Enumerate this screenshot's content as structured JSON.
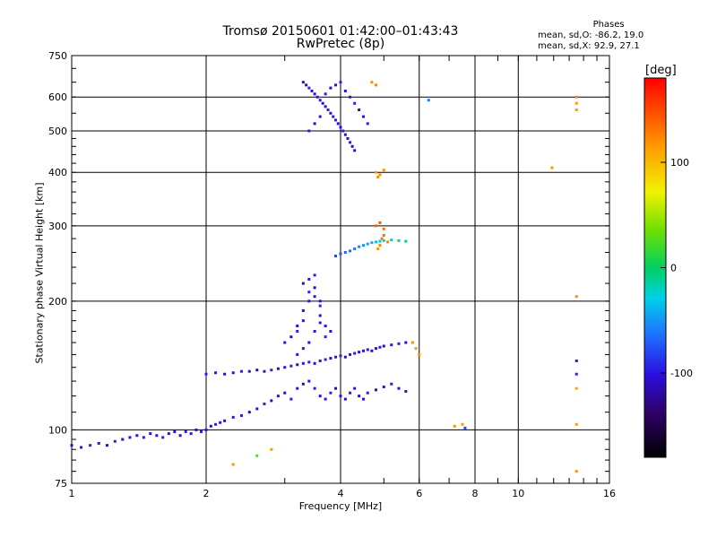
{
  "title": "Tromsø 20150601 01:42:00–01:43:43",
  "subtitle": "RwPretec (8p)",
  "phases": {
    "heading": "Phases",
    "line_o": "mean, sd,O: -86.2, 19.0",
    "line_x": "mean, sd,X:  92.9, 27.1"
  },
  "chart_data": {
    "type": "scatter",
    "title": "Tromsø 20150601 01:42:00–01:43:43",
    "subtitle": "RwPretec (8p)",
    "xlabel": "Frequency [MHz]",
    "ylabel": "Stationary phase Virtual Height [km]",
    "x_scale": "log",
    "y_scale": "log",
    "xlim": [
      1,
      16
    ],
    "ylim": [
      75,
      750
    ],
    "x_ticks": [
      1,
      2,
      4,
      6,
      8,
      10,
      16
    ],
    "y_ticks": [
      75,
      100,
      200,
      300,
      400,
      500,
      600,
      750
    ],
    "grid": true,
    "colorbar": {
      "label": "[deg]",
      "range": [
        -180,
        180
      ],
      "ticks": [
        -100,
        0,
        100
      ]
    },
    "series": [
      {
        "points": [
          [
            1.0,
            92,
            -110
          ],
          [
            1.05,
            91,
            -100
          ],
          [
            1.1,
            92,
            -95
          ],
          [
            1.15,
            93,
            -100
          ],
          [
            1.2,
            92,
            -110
          ],
          [
            1.25,
            94,
            -95
          ],
          [
            1.3,
            95,
            -100
          ],
          [
            1.35,
            96,
            -105
          ],
          [
            1.4,
            97,
            -100
          ],
          [
            1.45,
            96,
            -95
          ],
          [
            1.5,
            98,
            -110
          ],
          [
            1.55,
            97,
            -100
          ],
          [
            1.6,
            96,
            -95
          ],
          [
            1.65,
            98,
            -105
          ],
          [
            1.7,
            99,
            -100
          ],
          [
            1.75,
            97,
            -110
          ],
          [
            1.8,
            99,
            -95
          ],
          [
            1.85,
            98,
            -100
          ],
          [
            1.9,
            100,
            -105
          ],
          [
            1.95,
            99,
            -95
          ],
          [
            2.0,
            100,
            -100
          ],
          [
            2.05,
            102,
            -110
          ],
          [
            2.1,
            103,
            -95
          ],
          [
            2.15,
            104,
            -100
          ],
          [
            2.2,
            105,
            -105
          ],
          [
            2.3,
            107,
            -100
          ],
          [
            2.4,
            108,
            -95
          ],
          [
            2.5,
            110,
            -110
          ],
          [
            2.6,
            112,
            -100
          ],
          [
            2.7,
            115,
            -95
          ],
          [
            2.8,
            117,
            -105
          ],
          [
            2.9,
            120,
            -100
          ],
          [
            3.0,
            122,
            -110
          ],
          [
            3.1,
            118,
            -95
          ],
          [
            3.2,
            125,
            -100
          ],
          [
            3.3,
            128,
            -105
          ],
          [
            3.4,
            130,
            -100
          ],
          [
            3.5,
            125,
            -95
          ],
          [
            3.6,
            120,
            -110
          ],
          [
            3.7,
            118,
            -100
          ],
          [
            3.8,
            122,
            -95
          ],
          [
            3.9,
            125,
            -105
          ],
          [
            4.0,
            120,
            -100
          ],
          [
            4.1,
            118,
            -110
          ],
          [
            4.2,
            122,
            -95
          ],
          [
            4.3,
            125,
            -100
          ],
          [
            4.4,
            120,
            -105
          ],
          [
            4.5,
            118,
            -100
          ],
          [
            4.6,
            122,
            -95
          ],
          [
            4.8,
            124,
            -110
          ],
          [
            5.0,
            126,
            -100
          ],
          [
            5.2,
            128,
            -95
          ],
          [
            5.4,
            125,
            -105
          ],
          [
            5.6,
            123,
            -100
          ],
          [
            2.0,
            135,
            -95
          ],
          [
            2.1,
            136,
            -100
          ],
          [
            2.2,
            135,
            -105
          ],
          [
            2.3,
            136,
            -100
          ],
          [
            2.4,
            137,
            -95
          ],
          [
            2.5,
            137,
            -100
          ],
          [
            2.6,
            138,
            -110
          ],
          [
            2.7,
            137,
            -100
          ],
          [
            2.8,
            138,
            -95
          ],
          [
            2.9,
            139,
            -105
          ],
          [
            3.0,
            140,
            -100
          ],
          [
            3.1,
            141,
            -95
          ],
          [
            3.2,
            142,
            -110
          ],
          [
            3.3,
            143,
            -100
          ],
          [
            3.4,
            144,
            -95
          ],
          [
            3.5,
            143,
            -105
          ],
          [
            3.6,
            145,
            -100
          ],
          [
            3.7,
            146,
            -95
          ],
          [
            3.8,
            147,
            -110
          ],
          [
            3.9,
            148,
            -100
          ],
          [
            4.0,
            149,
            -95
          ],
          [
            4.1,
            148,
            -105
          ],
          [
            4.2,
            150,
            -100
          ],
          [
            4.3,
            151,
            -95
          ],
          [
            4.4,
            152,
            -110
          ],
          [
            4.5,
            153,
            -100
          ],
          [
            4.6,
            154,
            -95
          ],
          [
            4.7,
            153,
            -105
          ],
          [
            4.8,
            155,
            -100
          ],
          [
            4.9,
            156,
            -95
          ],
          [
            5.0,
            157,
            -110
          ],
          [
            5.2,
            158,
            -100
          ],
          [
            5.4,
            159,
            -95
          ],
          [
            5.6,
            160,
            -105
          ],
          [
            3.0,
            160,
            -100
          ],
          [
            3.1,
            165,
            -110
          ],
          [
            3.2,
            170,
            -95
          ],
          [
            3.3,
            180,
            -100
          ],
          [
            3.3,
            190,
            -105
          ],
          [
            3.4,
            200,
            -100
          ],
          [
            3.4,
            210,
            -95
          ],
          [
            3.5,
            215,
            -110
          ],
          [
            3.5,
            205,
            -100
          ],
          [
            3.6,
            195,
            -95
          ],
          [
            3.6,
            185,
            -105
          ],
          [
            3.7,
            175,
            -100
          ],
          [
            3.7,
            165,
            -95
          ],
          [
            3.8,
            170,
            -110
          ],
          [
            3.2,
            150,
            -100
          ],
          [
            3.3,
            155,
            -95
          ],
          [
            3.4,
            160,
            -105
          ],
          [
            3.5,
            170,
            -100
          ],
          [
            3.6,
            178,
            -95
          ],
          [
            3.3,
            220,
            -110
          ],
          [
            3.4,
            225,
            -100
          ],
          [
            3.5,
            230,
            -95
          ],
          [
            3.6,
            200,
            -105
          ],
          [
            3.2,
            175,
            -100
          ],
          [
            3.9,
            255,
            -80
          ],
          [
            4.0,
            258,
            -75
          ],
          [
            4.1,
            260,
            -70
          ],
          [
            4.2,
            262,
            -65
          ],
          [
            4.3,
            265,
            -60
          ],
          [
            4.4,
            268,
            -55
          ],
          [
            4.5,
            270,
            -50
          ],
          [
            4.6,
            272,
            -45
          ],
          [
            4.7,
            274,
            -40
          ],
          [
            4.8,
            275,
            -35
          ],
          [
            4.9,
            276,
            -30
          ],
          [
            5.0,
            277,
            -25
          ],
          [
            5.2,
            278,
            -20
          ],
          [
            5.4,
            277,
            -15
          ],
          [
            5.6,
            276,
            -10
          ],
          [
            4.85,
            265,
            120
          ],
          [
            4.9,
            270,
            125
          ],
          [
            4.95,
            280,
            130
          ],
          [
            5.0,
            285,
            135
          ],
          [
            4.8,
            300,
            140
          ],
          [
            4.9,
            305,
            145
          ],
          [
            5.0,
            295,
            130
          ],
          [
            5.1,
            275,
            125
          ],
          [
            3.3,
            650,
            -100
          ],
          [
            3.35,
            640,
            -110
          ],
          [
            3.4,
            630,
            -95
          ],
          [
            3.45,
            620,
            -100
          ],
          [
            3.5,
            610,
            -105
          ],
          [
            3.55,
            600,
            -100
          ],
          [
            3.6,
            590,
            -95
          ],
          [
            3.65,
            580,
            -110
          ],
          [
            3.7,
            570,
            -100
          ],
          [
            3.75,
            560,
            -95
          ],
          [
            3.8,
            550,
            -105
          ],
          [
            3.85,
            540,
            -100
          ],
          [
            3.9,
            530,
            -95
          ],
          [
            3.95,
            520,
            -110
          ],
          [
            4.0,
            510,
            -100
          ],
          [
            4.05,
            500,
            -95
          ],
          [
            4.1,
            490,
            -105
          ],
          [
            4.15,
            480,
            -100
          ],
          [
            4.2,
            470,
            -95
          ],
          [
            4.25,
            460,
            -110
          ],
          [
            4.3,
            450,
            -100
          ],
          [
            3.4,
            500,
            -95
          ],
          [
            3.5,
            520,
            -105
          ],
          [
            3.6,
            540,
            -100
          ],
          [
            3.7,
            610,
            -95
          ],
          [
            3.8,
            630,
            -110
          ],
          [
            3.9,
            640,
            -100
          ],
          [
            4.0,
            650,
            -95
          ],
          [
            4.1,
            620,
            -105
          ],
          [
            4.2,
            600,
            -100
          ],
          [
            4.3,
            580,
            -95
          ],
          [
            4.4,
            560,
            -110
          ],
          [
            4.5,
            540,
            -100
          ],
          [
            4.6,
            520,
            -95
          ],
          [
            4.7,
            650,
            120
          ],
          [
            4.8,
            640,
            125
          ],
          [
            4.8,
            400,
            115
          ],
          [
            4.9,
            395,
            120
          ],
          [
            5.0,
            405,
            118
          ],
          [
            4.85,
            390,
            122
          ],
          [
            6.3,
            590,
            -60
          ],
          [
            11.9,
            410,
            115
          ],
          [
            13.5,
            600,
            120
          ],
          [
            13.5,
            580,
            118
          ],
          [
            13.5,
            560,
            115
          ],
          [
            13.5,
            205,
            120
          ],
          [
            13.5,
            145,
            -100
          ],
          [
            13.5,
            135,
            -95
          ],
          [
            13.5,
            125,
            110
          ],
          [
            13.5,
            103,
            115
          ],
          [
            13.5,
            80,
            118
          ],
          [
            7.2,
            102,
            120
          ],
          [
            7.5,
            103,
            115
          ],
          [
            7.6,
            101,
            -80
          ],
          [
            2.8,
            90,
            115
          ],
          [
            2.6,
            87,
            25
          ],
          [
            2.3,
            83,
            115
          ],
          [
            5.8,
            160,
            120
          ],
          [
            5.9,
            155,
            115
          ],
          [
            6.0,
            150,
            118
          ]
        ]
      }
    ]
  }
}
